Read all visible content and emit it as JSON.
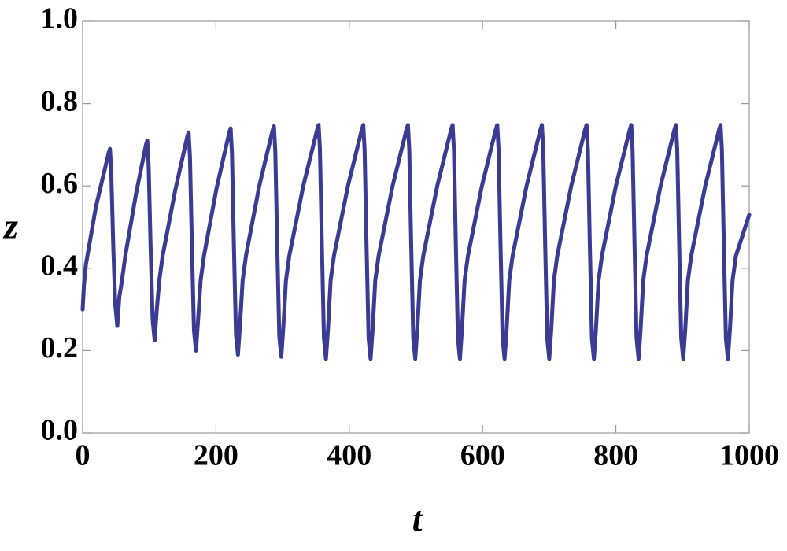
{
  "chart_data": {
    "type": "line",
    "x_label": "t",
    "y_label": "z",
    "color": "#3a3b92",
    "xlim": [
      0,
      1000
    ],
    "xticks": [
      0,
      200,
      400,
      600,
      800,
      1000
    ],
    "ylim": [
      0,
      1
    ],
    "yticks": [
      {
        "value": 0,
        "label": "0.0"
      },
      0.2,
      0.4,
      0.6,
      0.8,
      {
        "value": 1,
        "label": "1.0"
      }
    ],
    "x": [
      0,
      2,
      5,
      20,
      39,
      41,
      43,
      46,
      49,
      52,
      55,
      59,
      64,
      80,
      95,
      97,
      99,
      102,
      105,
      108,
      111,
      115,
      120,
      139,
      157,
      159,
      161,
      164,
      167,
      170,
      173,
      177,
      182,
      201,
      220,
      222,
      224,
      227,
      230,
      233,
      236,
      240,
      245,
      265,
      285,
      287,
      289,
      292,
      295,
      298,
      301,
      305,
      310,
      331,
      352,
      354,
      356,
      359,
      362,
      365,
      368,
      372,
      377,
      398,
      419,
      421,
      423,
      426,
      429,
      432,
      435,
      439,
      444,
      465,
      486,
      488,
      490,
      493,
      496,
      499,
      502,
      506,
      511,
      532,
      553,
      555,
      557,
      560,
      563,
      566,
      569,
      573,
      578,
      599,
      620,
      622,
      624,
      627,
      630,
      633,
      636,
      640,
      645,
      666,
      687,
      689,
      691,
      694,
      697,
      700,
      703,
      707,
      712,
      733,
      754,
      756,
      758,
      761,
      764,
      767,
      770,
      774,
      779,
      800,
      821,
      823,
      825,
      828,
      831,
      834,
      837,
      841,
      846,
      867,
      888,
      890,
      892,
      895,
      898,
      901,
      904,
      908,
      913,
      934,
      955,
      957,
      959,
      962,
      965,
      968,
      971,
      975,
      980,
      1000
    ],
    "values": [
      0.3,
      0.36,
      0.41,
      0.55,
      0.68,
      0.69,
      0.63,
      0.45,
      0.31,
      0.26,
      0.33,
      0.37,
      0.43,
      0.58,
      0.7,
      0.71,
      0.65,
      0.45,
      0.275,
      0.225,
      0.295,
      0.37,
      0.43,
      0.59,
      0.72,
      0.73,
      0.67,
      0.45,
      0.25,
      0.2,
      0.27,
      0.37,
      0.43,
      0.595,
      0.73,
      0.74,
      0.68,
      0.45,
      0.24,
      0.19,
      0.26,
      0.37,
      0.43,
      0.6,
      0.735,
      0.745,
      0.685,
      0.45,
      0.235,
      0.185,
      0.255,
      0.37,
      0.43,
      0.6,
      0.738,
      0.748,
      0.688,
      0.45,
      0.23,
      0.18,
      0.25,
      0.37,
      0.43,
      0.6,
      0.738,
      0.748,
      0.688,
      0.45,
      0.23,
      0.18,
      0.25,
      0.37,
      0.43,
      0.6,
      0.738,
      0.748,
      0.688,
      0.45,
      0.23,
      0.18,
      0.25,
      0.37,
      0.43,
      0.6,
      0.738,
      0.748,
      0.688,
      0.45,
      0.23,
      0.18,
      0.25,
      0.37,
      0.43,
      0.6,
      0.738,
      0.748,
      0.688,
      0.45,
      0.23,
      0.18,
      0.25,
      0.37,
      0.43,
      0.6,
      0.738,
      0.748,
      0.688,
      0.45,
      0.23,
      0.18,
      0.25,
      0.37,
      0.43,
      0.6,
      0.738,
      0.748,
      0.688,
      0.45,
      0.23,
      0.18,
      0.25,
      0.37,
      0.43,
      0.6,
      0.738,
      0.748,
      0.688,
      0.45,
      0.23,
      0.18,
      0.25,
      0.37,
      0.43,
      0.6,
      0.738,
      0.748,
      0.688,
      0.45,
      0.23,
      0.18,
      0.25,
      0.37,
      0.43,
      0.6,
      0.738,
      0.748,
      0.688,
      0.45,
      0.23,
      0.18,
      0.25,
      0.37,
      0.43,
      0.53
    ]
  }
}
